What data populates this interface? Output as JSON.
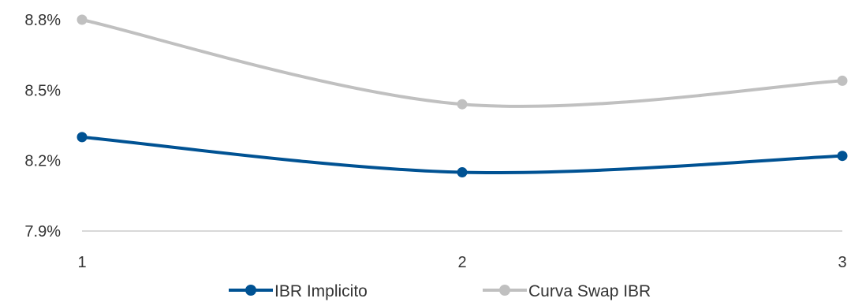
{
  "chart_data": {
    "type": "line",
    "x": [
      1,
      2,
      3
    ],
    "x_tick_labels": [
      "1",
      "2",
      "3"
    ],
    "y_tick_labels": [
      "8.8%",
      "8.5%",
      "8.2%",
      "7.9%"
    ],
    "y_ticks": [
      8.8,
      8.5,
      8.2,
      7.9
    ],
    "ylim": [
      7.9,
      8.8
    ],
    "grid": false,
    "legend_position": "bottom",
    "smooth": true,
    "series": [
      {
        "name": "IBR Implicito",
        "color": "#005293",
        "values": [
          8.3,
          8.15,
          8.22
        ]
      },
      {
        "name": "Curva Swap IBR",
        "color": "#c0c0c0",
        "values": [
          8.8,
          8.44,
          8.54
        ]
      }
    ],
    "axis_color": "#cccccc",
    "text_color": "#333333"
  }
}
